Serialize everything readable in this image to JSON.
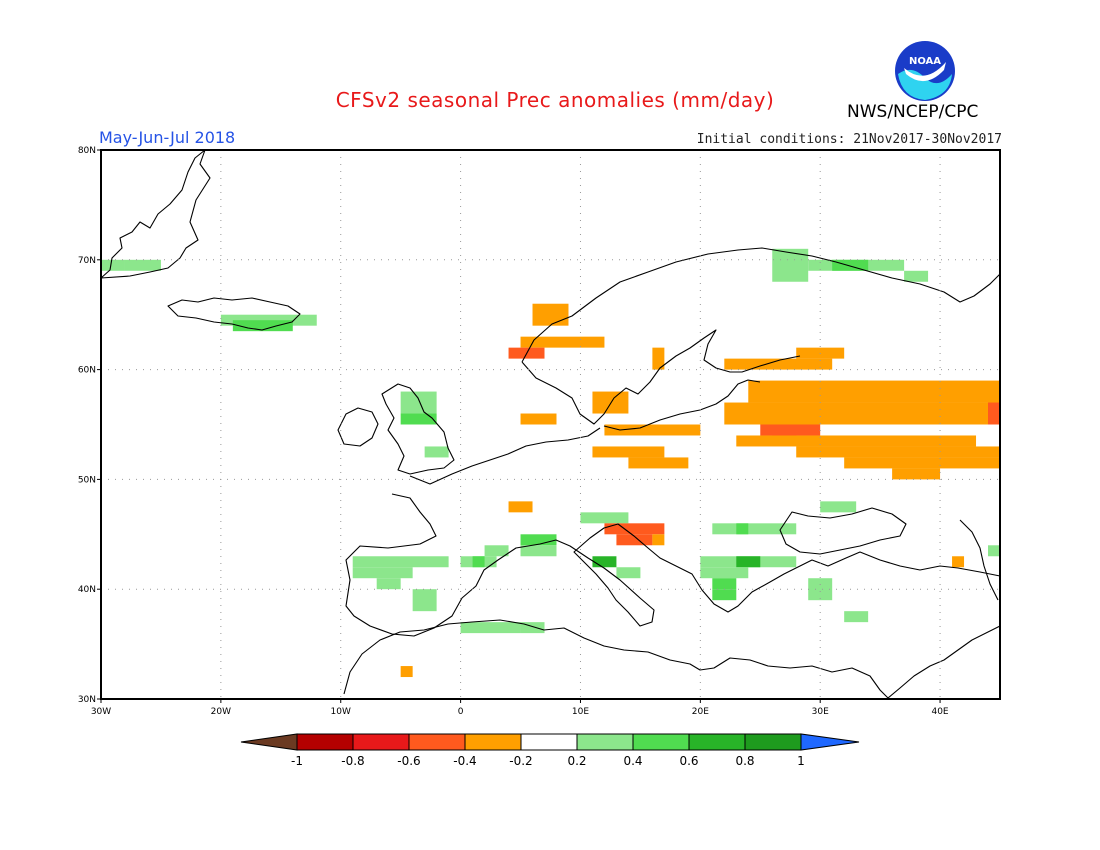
{
  "header": {
    "title": "CFSv2 seasonal Prec anomalies (mm/day)",
    "season": "May-Jun-Jul 2018",
    "initial_conditions": "Initial conditions: 21Nov2017-30Nov2017",
    "organization": "NWS/NCEP/CPC",
    "logo_text": "NOAA",
    "logo_icon": "noaa-logo-icon"
  },
  "map": {
    "region": "Europe",
    "lon_range": [
      -30,
      45
    ],
    "lat_range": [
      30,
      80
    ],
    "lon_ticks": [
      {
        "value": -30,
        "label": "30W"
      },
      {
        "value": -20,
        "label": "20W"
      },
      {
        "value": -10,
        "label": "10W"
      },
      {
        "value": 0,
        "label": "0"
      },
      {
        "value": 10,
        "label": "10E"
      },
      {
        "value": 20,
        "label": "20E"
      },
      {
        "value": 30,
        "label": "30E"
      },
      {
        "value": 40,
        "label": "40E"
      }
    ],
    "lat_ticks": [
      {
        "value": 30,
        "label": "30N"
      },
      {
        "value": 40,
        "label": "40N"
      },
      {
        "value": 50,
        "label": "50N"
      },
      {
        "value": 60,
        "label": "60N"
      },
      {
        "value": 70,
        "label": "70N"
      },
      {
        "value": 80,
        "label": "80N"
      }
    ],
    "grid": true
  },
  "colorbar": {
    "labels": [
      "-1",
      "-0.8",
      "-0.6",
      "-0.4",
      "-0.2",
      "0.2",
      "0.4",
      "0.6",
      "0.8",
      "1"
    ],
    "colors": [
      "#6b3a22",
      "#b40000",
      "#e8191a",
      "#ff5a1e",
      "#ff9f00",
      "#ffffff",
      "#8ce68c",
      "#50dc50",
      "#28b428",
      "#1e9b1e",
      "#1f68ff"
    ]
  },
  "anomaly_cells": [
    {
      "lon": -30,
      "lat": 69,
      "w": 2,
      "h": 1,
      "v": 0.3
    },
    {
      "lon": -28,
      "lat": 69,
      "w": 3,
      "h": 1,
      "v": 0.3
    },
    {
      "lon": -20,
      "lat": 64,
      "w": 8,
      "h": 1,
      "v": 0.3
    },
    {
      "lon": -19,
      "lat": 63.5,
      "w": 5,
      "h": 1,
      "v": 0.4
    },
    {
      "lon": -5,
      "lat": 56,
      "w": 3,
      "h": 2,
      "v": 0.3
    },
    {
      "lon": -5,
      "lat": 55,
      "w": 3,
      "h": 1,
      "v": 0.4
    },
    {
      "lon": -3,
      "lat": 52,
      "w": 2,
      "h": 1,
      "v": 0.3
    },
    {
      "lon": -9,
      "lat": 42,
      "w": 8,
      "h": 1,
      "v": 0.3
    },
    {
      "lon": -9,
      "lat": 41,
      "w": 5,
      "h": 1,
      "v": 0.3
    },
    {
      "lon": -7,
      "lat": 40,
      "w": 2,
      "h": 1,
      "v": 0.3
    },
    {
      "lon": -4,
      "lat": 38,
      "w": 2,
      "h": 2,
      "v": 0.3
    },
    {
      "lon": 0,
      "lat": 42,
      "w": 3,
      "h": 1,
      "v": 0.3
    },
    {
      "lon": 1,
      "lat": 42,
      "w": 1,
      "h": 1,
      "v": 0.5
    },
    {
      "lon": 2,
      "lat": 43,
      "w": 2,
      "h": 1,
      "v": 0.3
    },
    {
      "lon": 0,
      "lat": 36,
      "w": 5,
      "h": 1,
      "v": 0.3
    },
    {
      "lon": 5,
      "lat": 36,
      "w": 2,
      "h": 1,
      "v": 0.3
    },
    {
      "lon": 5,
      "lat": 44,
      "w": 3,
      "h": 1,
      "v": 0.4
    },
    {
      "lon": 5,
      "lat": 43,
      "w": 3,
      "h": 1,
      "v": 0.3
    },
    {
      "lon": 10,
      "lat": 46,
      "w": 4,
      "h": 1,
      "v": 0.3
    },
    {
      "lon": 11,
      "lat": 42,
      "w": 2,
      "h": 1,
      "v": 0.6
    },
    {
      "lon": 13,
      "lat": 41,
      "w": 2,
      "h": 1,
      "v": 0.3
    },
    {
      "lon": 21,
      "lat": 45,
      "w": 7,
      "h": 1,
      "v": 0.3
    },
    {
      "lon": 23,
      "lat": 45,
      "w": 1,
      "h": 1,
      "v": 0.5
    },
    {
      "lon": 20,
      "lat": 42,
      "w": 8,
      "h": 1,
      "v": 0.3
    },
    {
      "lon": 23,
      "lat": 42,
      "w": 2,
      "h": 1,
      "v": 0.6
    },
    {
      "lon": 20,
      "lat": 41,
      "w": 4,
      "h": 1,
      "v": 0.3
    },
    {
      "lon": 21,
      "lat": 40,
      "w": 2,
      "h": 1,
      "v": 0.5
    },
    {
      "lon": 21,
      "lat": 39,
      "w": 2,
      "h": 1,
      "v": 0.4
    },
    {
      "lon": 29,
      "lat": 39,
      "w": 2,
      "h": 2,
      "v": 0.3
    },
    {
      "lon": 30,
      "lat": 47,
      "w": 3,
      "h": 1,
      "v": 0.3
    },
    {
      "lon": 32,
      "lat": 37,
      "w": 2,
      "h": 1,
      "v": 0.3
    },
    {
      "lon": 26,
      "lat": 68,
      "w": 3,
      "h": 3,
      "v": 0.3
    },
    {
      "lon": 29,
      "lat": 69,
      "w": 8,
      "h": 1,
      "v": 0.3
    },
    {
      "lon": 31,
      "lat": 69,
      "w": 3,
      "h": 1,
      "v": 0.4
    },
    {
      "lon": 37,
      "lat": 68,
      "w": 2,
      "h": 1,
      "v": 0.3
    },
    {
      "lon": 44,
      "lat": 43,
      "w": 1,
      "h": 1,
      "v": 0.3
    },
    {
      "lon": 6,
      "lat": 64,
      "w": 3,
      "h": 2,
      "v": -0.3
    },
    {
      "lon": 5,
      "lat": 62,
      "w": 7,
      "h": 1,
      "v": -0.3
    },
    {
      "lon": 4,
      "lat": 61,
      "w": 3,
      "h": 1,
      "v": -0.5
    },
    {
      "lon": 5,
      "lat": 55,
      "w": 3,
      "h": 1,
      "v": -0.3
    },
    {
      "lon": 11,
      "lat": 56,
      "w": 3,
      "h": 2,
      "v": -0.3
    },
    {
      "lon": 12,
      "lat": 54,
      "w": 8,
      "h": 1,
      "v": -0.3
    },
    {
      "lon": 16,
      "lat": 60,
      "w": 1,
      "h": 2,
      "v": -0.3
    },
    {
      "lon": 22,
      "lat": 60,
      "w": 9,
      "h": 1,
      "v": -0.3
    },
    {
      "lon": 28,
      "lat": 61,
      "w": 4,
      "h": 1,
      "v": -0.3
    },
    {
      "lon": 24,
      "lat": 57,
      "w": 21,
      "h": 2,
      "v": -0.3
    },
    {
      "lon": 22,
      "lat": 55,
      "w": 23,
      "h": 2,
      "v": -0.3
    },
    {
      "lon": 25,
      "lat": 54,
      "w": 5,
      "h": 1,
      "v": -0.5
    },
    {
      "lon": 26,
      "lat": 54,
      "w": 2,
      "h": 1,
      "v": -0.5
    },
    {
      "lon": 23,
      "lat": 53,
      "w": 20,
      "h": 1,
      "v": -0.3
    },
    {
      "lon": 28,
      "lat": 52,
      "w": 17,
      "h": 1,
      "v": -0.3
    },
    {
      "lon": 32,
      "lat": 51,
      "w": 13,
      "h": 1,
      "v": -0.3
    },
    {
      "lon": 36,
      "lat": 50,
      "w": 4,
      "h": 1,
      "v": -0.3
    },
    {
      "lon": 44,
      "lat": 55,
      "w": 1,
      "h": 2,
      "v": -0.5
    },
    {
      "lon": 11,
      "lat": 52,
      "w": 6,
      "h": 1,
      "v": -0.3
    },
    {
      "lon": 14,
      "lat": 51,
      "w": 5,
      "h": 1,
      "v": -0.3
    },
    {
      "lon": 12,
      "lat": 45,
      "w": 5,
      "h": 1,
      "v": -0.5
    },
    {
      "lon": 13,
      "lat": 44,
      "w": 3,
      "h": 1,
      "v": -0.5
    },
    {
      "lon": 16,
      "lat": 44,
      "w": 1,
      "h": 1,
      "v": -0.3
    },
    {
      "lon": 4,
      "lat": 47,
      "w": 2,
      "h": 1,
      "v": -0.3
    },
    {
      "lon": -5,
      "lat": 32,
      "w": 1,
      "h": 1,
      "v": -0.3
    },
    {
      "lon": 41,
      "lat": 42,
      "w": 1,
      "h": 1,
      "v": -0.3
    }
  ]
}
